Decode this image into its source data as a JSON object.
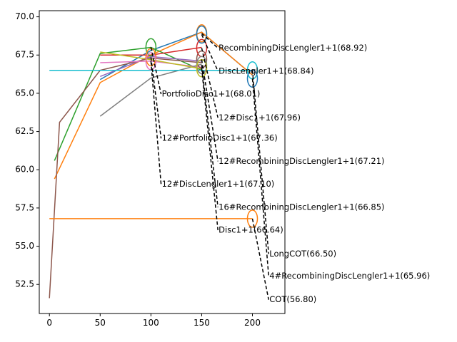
{
  "chart_data": {
    "type": "line",
    "title": "",
    "xlabel": "",
    "ylabel": "",
    "xlim": [
      -10,
      232
    ],
    "ylim": [
      50.6,
      70.4
    ],
    "xticks": [
      0,
      50,
      100,
      150,
      200
    ],
    "yticks": [
      52.5,
      55.0,
      57.5,
      60.0,
      62.5,
      65.0,
      67.5,
      70.0
    ],
    "xtick_labels": [
      "0",
      "50",
      "100",
      "150",
      "200"
    ],
    "ytick_labels": [
      "52.5",
      "55.0",
      "57.5",
      "60.0",
      "62.5",
      "65.0",
      "67.5",
      "70.0"
    ],
    "grid": false,
    "series": [
      {
        "color": "#1f77b4",
        "points": [
          [
            50,
            65.9
          ],
          [
            100,
            67.8
          ],
          [
            150,
            69.0
          ],
          [
            200,
            66.2
          ]
        ]
      },
      {
        "color": "#ff7f0e",
        "points": [
          [
            5,
            59.4
          ],
          [
            50,
            65.7
          ],
          [
            100,
            67.5
          ],
          [
            150,
            69.0
          ],
          [
            200,
            66.2
          ]
        ]
      },
      {
        "color": "#2ca02c",
        "points": [
          [
            5,
            60.6
          ],
          [
            50,
            67.6
          ],
          [
            100,
            68.0
          ],
          [
            150,
            66.5
          ]
        ]
      },
      {
        "color": "#d62728",
        "points": [
          [
            50,
            67.5
          ],
          [
            100,
            67.5
          ],
          [
            150,
            68.0
          ]
        ]
      },
      {
        "color": "#9467bd",
        "points": [
          [
            50,
            66.1
          ],
          [
            100,
            67.4
          ],
          [
            150,
            67.1
          ]
        ]
      },
      {
        "color": "#8c564b",
        "points": [
          [
            0,
            51.6
          ],
          [
            10,
            63.1
          ],
          [
            50,
            66.5
          ],
          [
            100,
            67.3
          ],
          [
            150,
            67.0
          ]
        ]
      },
      {
        "color": "#e377c2",
        "points": [
          [
            50,
            67.0
          ],
          [
            100,
            67.1
          ],
          [
            150,
            66.7
          ]
        ]
      },
      {
        "color": "#7f7f7f",
        "points": [
          [
            50,
            63.5
          ],
          [
            100,
            66.0
          ],
          [
            150,
            66.9
          ]
        ]
      },
      {
        "color": "#bcbd22",
        "points": [
          [
            50,
            67.7
          ],
          [
            100,
            67.2
          ],
          [
            150,
            66.6
          ]
        ]
      },
      {
        "color": "#17becf",
        "points": [
          [
            0,
            66.5
          ],
          [
            200,
            66.5
          ]
        ]
      },
      {
        "color": "#ff7f0e",
        "points": [
          [
            0,
            56.8
          ],
          [
            200,
            56.8
          ]
        ]
      }
    ],
    "circles": [
      {
        "x": 100,
        "y": 68.01,
        "color": "#2ca02c"
      },
      {
        "x": 100,
        "y": 67.36,
        "color": "#ff7f0e"
      },
      {
        "x": 100,
        "y": 67.1,
        "color": "#e377c2"
      },
      {
        "x": 150,
        "y": 68.92,
        "color": "#ff7f0e"
      },
      {
        "x": 150,
        "y": 68.84,
        "color": "#1f77b4"
      },
      {
        "x": 150,
        "y": 67.96,
        "color": "#d62728"
      },
      {
        "x": 150,
        "y": 67.21,
        "color": "#8c564b"
      },
      {
        "x": 150,
        "y": 66.85,
        "color": "#7f7f7f"
      },
      {
        "x": 150,
        "y": 66.64,
        "color": "#bcbd22"
      },
      {
        "x": 200,
        "y": 66.5,
        "color": "#17becf"
      },
      {
        "x": 200,
        "y": 65.96,
        "color": "#1f77b4"
      },
      {
        "x": 200,
        "y": 56.8,
        "color": "#ff7f0e"
      }
    ],
    "annotations": [
      {
        "label": "RecombiningDiscLengler1+1(68.92)",
        "from": [
          150,
          68.92
        ],
        "to": [
          166,
          67.95
        ]
      },
      {
        "label": "DiscLengler1+1(68.84)",
        "from": [
          150,
          68.84
        ],
        "to": [
          166,
          66.45
        ]
      },
      {
        "label": "PortfolioDisc1+1(68.01)",
        "from": [
          100,
          68.01
        ],
        "to": [
          110,
          64.95
        ]
      },
      {
        "label": "12#Disc1+1(67.96)",
        "from": [
          150,
          67.96
        ],
        "to": [
          166,
          63.4
        ]
      },
      {
        "label": "12#PortfolioDisc1+1(67.36)",
        "from": [
          100,
          67.36
        ],
        "to": [
          110,
          62.05
        ]
      },
      {
        "label": "12#RecombiningDiscLengler1+1(67.21)",
        "from": [
          150,
          67.21
        ],
        "to": [
          166,
          60.55
        ]
      },
      {
        "label": "12#DiscLengler1+1(67.10)",
        "from": [
          100,
          67.1
        ],
        "to": [
          110,
          59.05
        ]
      },
      {
        "label": "16#RecombiningDiscLengler1+1(66.85)",
        "from": [
          150,
          66.85
        ],
        "to": [
          166,
          57.55
        ]
      },
      {
        "label": "Disc1+1(66.64)",
        "from": [
          150,
          66.64
        ],
        "to": [
          166,
          56.05
        ]
      },
      {
        "label": "LongCOT(66.50)",
        "from": [
          200,
          66.5
        ],
        "to": [
          216,
          54.5
        ]
      },
      {
        "label": "4#RecombiningDiscLengler1+1(65.96)",
        "from": [
          200,
          65.96
        ],
        "to": [
          216,
          53.05
        ]
      },
      {
        "label": "COT(56.80)",
        "from": [
          200,
          56.8
        ],
        "to": [
          216,
          51.5
        ]
      }
    ]
  }
}
